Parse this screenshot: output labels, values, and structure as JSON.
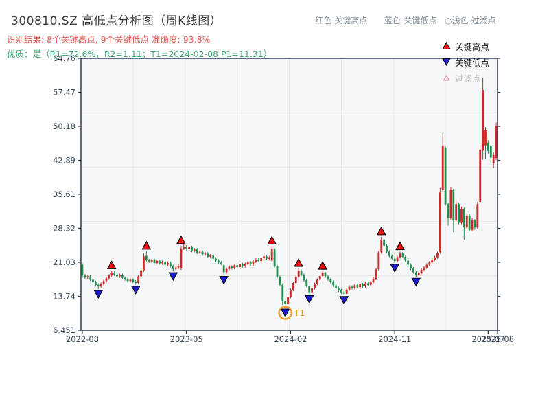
{
  "header": {
    "title": "300810.SZ 高低点分析图（周K线图）",
    "result_line": "识别结果: 8个关键高点, 9个关键低点  准确度: 93.8%",
    "quality_line": "优质：是（R1=72.6%，R2=1.11；T1=2024-02-08 P1=11.31）",
    "note_high": "红色-关键高点",
    "note_low": "蓝色-关键低点",
    "note_filtered": "○浅色-过滤点"
  },
  "stats": {
    "num_key_highs": 8,
    "num_key_lows": 9,
    "accuracy": "93.8%",
    "quality": "是",
    "r1": "72.6%",
    "r2": "1.11",
    "t1_date": "2024-02-08",
    "p1": 11.31
  },
  "legend": {
    "high": "关键高点",
    "low": "关键低点",
    "filtered": "过滤点"
  },
  "chart_data": {
    "type": "candlestick",
    "title": "300810.SZ 高低点分析图（周K线图）",
    "xlabel": "",
    "ylabel": "",
    "grid": true,
    "legend_position": "top-right",
    "axis": {
      "y_min": 6.451,
      "y_max": 64.76,
      "y_ticks": [
        "64.76",
        "57.47",
        "50.18",
        "42.89",
        "35.61",
        "28.32",
        "21.03",
        "13.74",
        "6.451"
      ],
      "y_tick_values": [
        64.76,
        57.47,
        50.18,
        42.89,
        35.61,
        28.32,
        21.03,
        13.74,
        6.451
      ],
      "x_ticks": [
        {
          "week": 0,
          "label": "2022-08"
        },
        {
          "week": 39,
          "label": "2023-05"
        },
        {
          "week": 78,
          "label": "2024-02"
        },
        {
          "week": 117,
          "label": "2024-11"
        },
        {
          "week": 152,
          "label": "2025-07"
        },
        {
          "week": 155.5,
          "label": "2025-08"
        }
      ]
    },
    "candles_format": [
      "open",
      "high",
      "low",
      "close"
    ],
    "candles": [
      [
        20.5,
        20.8,
        17.9,
        18.2
      ],
      [
        18.2,
        18.5,
        17.5,
        17.8
      ],
      [
        17.8,
        18.3,
        17.5,
        18.0
      ],
      [
        18.0,
        18.3,
        17.0,
        17.3
      ],
      [
        17.3,
        17.6,
        16.5,
        16.8
      ],
      [
        16.8,
        17.1,
        15.9,
        16.2
      ],
      [
        16.2,
        16.5,
        15.3,
        15.9
      ],
      [
        15.9,
        16.7,
        15.6,
        16.4
      ],
      [
        16.4,
        17.3,
        16.1,
        17.0
      ],
      [
        17.0,
        17.9,
        16.7,
        17.6
      ],
      [
        17.6,
        18.5,
        17.3,
        18.2
      ],
      [
        18.2,
        19.2,
        17.9,
        18.8
      ],
      [
        18.8,
        19.1,
        18.1,
        18.4
      ],
      [
        18.4,
        18.7,
        17.7,
        18.0
      ],
      [
        18.0,
        18.6,
        17.7,
        18.3
      ],
      [
        18.3,
        18.6,
        17.4,
        17.7
      ],
      [
        17.7,
        18.0,
        17.1,
        17.4
      ],
      [
        17.4,
        17.7,
        16.7,
        17.0
      ],
      [
        17.0,
        17.6,
        16.7,
        17.3
      ],
      [
        17.3,
        17.6,
        16.6,
        16.9
      ],
      [
        16.9,
        17.2,
        16.2,
        16.6
      ],
      [
        16.6,
        18.3,
        16.3,
        18.0
      ],
      [
        18.0,
        19.6,
        17.7,
        19.3
      ],
      [
        19.3,
        23.0,
        19.0,
        22.3
      ],
      [
        22.4,
        23.4,
        21.2,
        21.5
      ],
      [
        21.5,
        21.8,
        20.9,
        21.2
      ],
      [
        21.2,
        21.8,
        20.9,
        21.5
      ],
      [
        21.5,
        21.8,
        20.6,
        20.9
      ],
      [
        20.9,
        21.6,
        20.6,
        21.3
      ],
      [
        21.3,
        21.6,
        20.5,
        20.8
      ],
      [
        20.8,
        21.4,
        20.5,
        21.1
      ],
      [
        21.1,
        21.4,
        20.2,
        20.5
      ],
      [
        20.5,
        21.2,
        20.2,
        20.9
      ],
      [
        20.9,
        21.2,
        19.9,
        20.2
      ],
      [
        20.2,
        20.5,
        19.1,
        19.6
      ],
      [
        19.6,
        20.2,
        19.3,
        19.9
      ],
      [
        19.9,
        20.6,
        19.6,
        20.3
      ],
      [
        19.7,
        24.6,
        19.4,
        24.0
      ],
      [
        24.0,
        24.9,
        23.7,
        24.4
      ],
      [
        24.4,
        24.7,
        23.6,
        23.9
      ],
      [
        23.9,
        24.6,
        23.6,
        24.3
      ],
      [
        24.3,
        24.6,
        23.2,
        23.5
      ],
      [
        23.5,
        24.1,
        23.2,
        23.8
      ],
      [
        23.8,
        24.1,
        22.8,
        23.1
      ],
      [
        23.1,
        23.6,
        22.8,
        23.3
      ],
      [
        23.3,
        23.6,
        22.4,
        22.7
      ],
      [
        22.7,
        23.2,
        22.4,
        22.9
      ],
      [
        22.9,
        23.2,
        21.9,
        22.2
      ],
      [
        22.2,
        22.8,
        21.9,
        22.5
      ],
      [
        22.5,
        22.8,
        21.5,
        21.8
      ],
      [
        21.8,
        22.1,
        21.1,
        21.4
      ],
      [
        21.4,
        21.7,
        20.7,
        21.0
      ],
      [
        21.0,
        21.3,
        20.4,
        20.7
      ],
      [
        20.4,
        20.7,
        18.3,
        18.9
      ],
      [
        18.9,
        19.9,
        18.6,
        19.6
      ],
      [
        19.6,
        20.4,
        19.3,
        20.1
      ],
      [
        20.1,
        20.4,
        19.5,
        19.8
      ],
      [
        19.8,
        20.7,
        19.5,
        20.4
      ],
      [
        20.4,
        20.7,
        19.7,
        20.0
      ],
      [
        20.0,
        20.9,
        19.7,
        20.6
      ],
      [
        20.6,
        20.9,
        19.9,
        20.2
      ],
      [
        20.2,
        21.0,
        19.9,
        20.7
      ],
      [
        20.7,
        21.3,
        20.4,
        21.0
      ],
      [
        21.0,
        21.3,
        20.3,
        20.6
      ],
      [
        20.6,
        21.5,
        20.3,
        21.2
      ],
      [
        21.2,
        21.9,
        20.9,
        21.6
      ],
      [
        21.6,
        21.9,
        21.0,
        21.3
      ],
      [
        21.3,
        22.2,
        21.0,
        21.9
      ],
      [
        21.9,
        22.6,
        21.6,
        22.3
      ],
      [
        22.3,
        22.6,
        21.5,
        21.8
      ],
      [
        21.8,
        22.4,
        21.5,
        22.1
      ],
      [
        21.4,
        24.5,
        21.1,
        23.8
      ],
      [
        23.8,
        24.1,
        19.9,
        20.2
      ],
      [
        20.2,
        20.5,
        17.6,
        17.9
      ],
      [
        17.9,
        18.2,
        15.9,
        16.2
      ],
      [
        16.2,
        16.5,
        11.9,
        12.7
      ],
      [
        12.7,
        13.4,
        11.31,
        12.1
      ],
      [
        12.1,
        13.9,
        11.8,
        13.6
      ],
      [
        13.6,
        15.4,
        13.3,
        15.1
      ],
      [
        15.1,
        16.9,
        14.8,
        16.6
      ],
      [
        16.6,
        18.2,
        16.3,
        17.9
      ],
      [
        17.9,
        19.7,
        17.6,
        19.2
      ],
      [
        19.2,
        19.5,
        18.0,
        18.3
      ],
      [
        18.3,
        18.6,
        16.9,
        17.2
      ],
      [
        17.2,
        17.5,
        15.7,
        16.0
      ],
      [
        16.0,
        16.3,
        14.2,
        14.6
      ],
      [
        14.6,
        15.8,
        14.3,
        15.5
      ],
      [
        15.5,
        16.7,
        15.2,
        16.4
      ],
      [
        16.4,
        17.6,
        16.1,
        17.3
      ],
      [
        17.3,
        18.4,
        17.0,
        18.1
      ],
      [
        18.1,
        19.1,
        17.8,
        18.7
      ],
      [
        18.7,
        19.0,
        17.7,
        18.0
      ],
      [
        18.0,
        18.3,
        17.1,
        17.4
      ],
      [
        17.4,
        17.7,
        16.5,
        16.8
      ],
      [
        16.8,
        17.1,
        15.8,
        16.1
      ],
      [
        16.1,
        16.4,
        15.2,
        15.5
      ],
      [
        15.5,
        15.8,
        14.7,
        15.0
      ],
      [
        15.0,
        15.3,
        14.3,
        14.6
      ],
      [
        14.6,
        14.9,
        14.0,
        14.3
      ],
      [
        14.3,
        15.5,
        14.0,
        15.2
      ],
      [
        15.2,
        16.1,
        14.9,
        15.8
      ],
      [
        15.8,
        16.1,
        15.2,
        15.5
      ],
      [
        15.5,
        16.4,
        15.2,
        16.1
      ],
      [
        16.1,
        16.4,
        15.4,
        15.7
      ],
      [
        15.7,
        16.6,
        15.4,
        16.3
      ],
      [
        16.3,
        16.6,
        15.6,
        15.9
      ],
      [
        15.9,
        16.8,
        15.6,
        16.5
      ],
      [
        16.5,
        16.8,
        15.9,
        16.2
      ],
      [
        16.2,
        17.1,
        15.9,
        16.8
      ],
      [
        16.8,
        17.8,
        16.5,
        17.5
      ],
      [
        17.5,
        19.8,
        17.2,
        19.5
      ],
      [
        19.5,
        23.5,
        19.2,
        23.2
      ],
      [
        23.2,
        26.5,
        22.9,
        25.9
      ],
      [
        25.9,
        26.2,
        24.3,
        24.6
      ],
      [
        24.6,
        24.9,
        23.0,
        23.3
      ],
      [
        23.3,
        23.6,
        22.1,
        22.4
      ],
      [
        22.4,
        22.7,
        21.5,
        21.8
      ],
      [
        21.8,
        22.1,
        20.9,
        21.3
      ],
      [
        21.3,
        22.4,
        21.0,
        22.1
      ],
      [
        22.1,
        23.3,
        21.8,
        22.9
      ],
      [
        22.9,
        23.2,
        21.9,
        22.2
      ],
      [
        22.2,
        22.5,
        21.1,
        21.4
      ],
      [
        21.4,
        21.7,
        20.2,
        20.5
      ],
      [
        20.5,
        20.8,
        19.4,
        19.7
      ],
      [
        19.7,
        20.0,
        18.6,
        18.9
      ],
      [
        18.9,
        19.2,
        17.9,
        18.3
      ],
      [
        18.3,
        19.1,
        18.0,
        18.8
      ],
      [
        18.8,
        19.7,
        18.5,
        19.4
      ],
      [
        19.4,
        20.2,
        19.1,
        19.9
      ],
      [
        19.9,
        20.8,
        19.6,
        20.5
      ],
      [
        20.5,
        21.3,
        20.2,
        21.0
      ],
      [
        21.0,
        21.9,
        20.7,
        21.6
      ],
      [
        21.6,
        22.4,
        21.3,
        22.1
      ],
      [
        22.1,
        23.3,
        21.8,
        23.0
      ],
      [
        23.2,
        37.0,
        22.9,
        36.0
      ],
      [
        36.5,
        48.8,
        36.2,
        46.0
      ],
      [
        45.5,
        45.8,
        33.2,
        33.5
      ],
      [
        33.5,
        33.8,
        28.9,
        30.5
      ],
      [
        30.5,
        37.2,
        30.2,
        36.5
      ],
      [
        36.5,
        36.8,
        27.5,
        30.0
      ],
      [
        30.0,
        34.0,
        29.7,
        33.5
      ],
      [
        33.5,
        33.8,
        29.2,
        29.5
      ],
      [
        29.5,
        33.0,
        29.2,
        32.5
      ],
      [
        32.5,
        32.8,
        25.9,
        28.5
      ],
      [
        28.5,
        31.5,
        28.2,
        31.0
      ],
      [
        31.0,
        31.3,
        27.7,
        28.0
      ],
      [
        28.0,
        30.5,
        27.7,
        30.0
      ],
      [
        30.0,
        30.3,
        28.0,
        28.5
      ],
      [
        28.5,
        34.0,
        28.2,
        33.5
      ],
      [
        34.0,
        46.2,
        33.7,
        45.2
      ],
      [
        45.0,
        60.6,
        43.0,
        58.0
      ],
      [
        46.1,
        50.0,
        43.1,
        49.3
      ],
      [
        46.7,
        47.2,
        44.3,
        44.9
      ],
      [
        45.9,
        46.2,
        42.4,
        43.5
      ],
      [
        42.3,
        44.6,
        41.2,
        44.0
      ],
      [
        43.4,
        51.0,
        42.9,
        50.3
      ]
    ],
    "key_highs": [
      {
        "week": 11,
        "price": 19.2
      },
      {
        "week": 24,
        "price": 23.4
      },
      {
        "week": 37,
        "price": 24.6
      },
      {
        "week": 71,
        "price": 24.5
      },
      {
        "week": 81,
        "price": 19.7
      },
      {
        "week": 90,
        "price": 19.1
      },
      {
        "week": 112,
        "price": 26.5
      },
      {
        "week": 119,
        "price": 23.3
      }
    ],
    "key_lows": [
      {
        "week": 6,
        "price": 15.3
      },
      {
        "week": 20,
        "price": 16.2
      },
      {
        "week": 34,
        "price": 19.1
      },
      {
        "week": 53,
        "price": 18.3
      },
      {
        "week": 76,
        "price": 11.31,
        "t1": true
      },
      {
        "week": 85,
        "price": 14.2
      },
      {
        "week": 98,
        "price": 14.0
      },
      {
        "week": 117,
        "price": 20.9
      },
      {
        "week": 125,
        "price": 17.9
      }
    ],
    "annotations": {
      "t1_label": "T1"
    },
    "colors": {
      "up": "#cc2a24",
      "down": "#1f8f4d",
      "high_marker": "#e8130d",
      "low_marker": "#1a1ad1",
      "marker_edge": "#000000",
      "filtered_marker": "#e8a0a8",
      "t1": "#f0a030",
      "grid": "#e7e7e7",
      "plot_bg": "#f6f7f9",
      "border": "#2e3b4e",
      "tick_label": "#3d4b5c"
    }
  }
}
